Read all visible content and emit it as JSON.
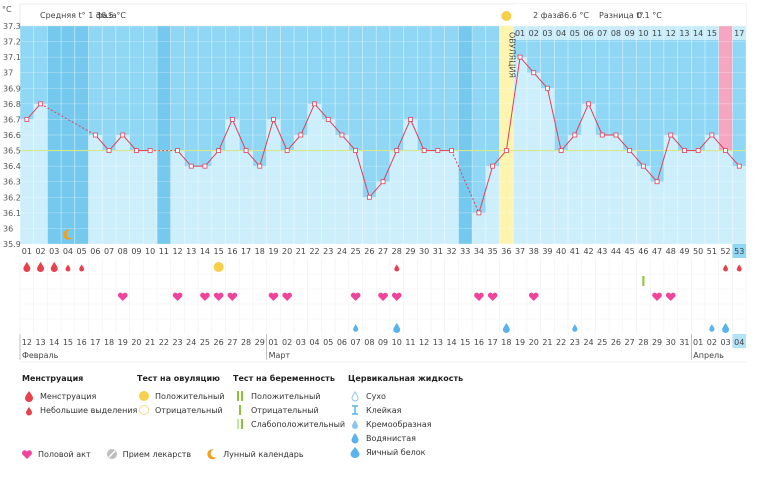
{
  "chart_data": {
    "type": "line",
    "y_unit": "°C",
    "y_ticks": [
      "37.3",
      "37.2",
      "37.1",
      "37",
      "36.9",
      "36.8",
      "36.7",
      "36.6",
      "36.5",
      "36.4",
      "36.3",
      "36.2",
      "36.1",
      "36",
      "35.9"
    ],
    "ylim": [
      35.9,
      37.3
    ],
    "coverline": 36.5,
    "cycle_days": [
      "01",
      "02",
      "03",
      "04",
      "05",
      "06",
      "07",
      "08",
      "09",
      "10",
      "11",
      "12",
      "13",
      "14",
      "15",
      "16",
      "17",
      "18",
      "19",
      "20",
      "21",
      "22",
      "23",
      "24",
      "25",
      "26",
      "27",
      "28",
      "29",
      "30",
      "31",
      "32",
      "33",
      "34",
      "35",
      "36",
      "37",
      "38",
      "39",
      "40",
      "41",
      "42",
      "43",
      "44",
      "45",
      "46",
      "47",
      "48",
      "49",
      "50",
      "51",
      "52",
      "53"
    ],
    "temps": [
      36.7,
      36.8,
      null,
      null,
      null,
      36.6,
      36.5,
      36.6,
      36.5,
      36.5,
      null,
      36.5,
      36.4,
      36.4,
      36.5,
      36.7,
      36.5,
      36.4,
      36.7,
      36.5,
      36.6,
      36.8,
      36.7,
      36.6,
      36.5,
      36.2,
      36.3,
      36.5,
      36.7,
      36.5,
      36.5,
      36.5,
      null,
      36.1,
      36.4,
      36.5,
      37.1,
      37.0,
      36.9,
      36.5,
      36.6,
      36.8,
      36.6,
      36.6,
      36.5,
      36.4,
      36.3,
      36.6,
      36.5,
      36.5,
      36.6,
      36.5,
      36.4
    ],
    "phase1": {
      "label": "Средняя t° 1 фаза",
      "value": "36.5 °C"
    },
    "phase2": {
      "label": "2 фаза",
      "value": "36.6 °C",
      "diff_label": "Разница t°",
      "diff_value": "0.1 °C"
    },
    "ovulation_label": "ОВУЛЯЦИЯ",
    "phase2_day_labels": [
      "01",
      "02",
      "03",
      "04",
      "05",
      "06",
      "07",
      "08",
      "09",
      "10",
      "11",
      "12",
      "13",
      "14",
      "15",
      "16",
      "17"
    ],
    "calendar_days": [
      "12",
      "13",
      "14",
      "15",
      "16",
      "17",
      "18",
      "19",
      "20",
      "21",
      "22",
      "23",
      "24",
      "25",
      "26",
      "27",
      "28",
      "29",
      "01",
      "02",
      "03",
      "04",
      "05",
      "06",
      "07",
      "08",
      "09",
      "10",
      "11",
      "12",
      "13",
      "14",
      "15",
      "16",
      "17",
      "18",
      "19",
      "20",
      "21",
      "22",
      "23",
      "24",
      "25",
      "26",
      "27",
      "28",
      "29",
      "30",
      "31",
      "01",
      "02",
      "03",
      "04"
    ],
    "calendar_red": [
      4,
      5,
      10,
      11,
      17,
      18,
      24,
      25,
      31,
      32,
      38,
      39,
      45,
      46,
      52
    ],
    "months": [
      {
        "name": "Февраль",
        "day": 1
      },
      {
        "name": "Март",
        "day": 19
      },
      {
        "name": "Апрель",
        "day": 50
      }
    ],
    "menstruation_days": [
      1,
      2,
      3
    ],
    "spotting_days": [
      4,
      5,
      28,
      52,
      53
    ],
    "ovulation_test_positive_days": [
      15
    ],
    "pregnancy_test_weak_days": [
      46
    ],
    "intercourse_days": [
      8,
      12,
      14,
      15,
      16,
      19,
      20,
      25,
      27,
      28,
      34,
      35,
      38,
      47,
      48
    ],
    "fluid_watery_days": [
      25,
      41,
      51,
      52
    ],
    "fluid_eggwhite_days": [
      28,
      36,
      52
    ],
    "moon_days": [
      4
    ],
    "gap_days": [
      3,
      4,
      5,
      11,
      33
    ],
    "current_day": 53
  },
  "legend": {
    "menstruation": {
      "title": "Менструация",
      "items": [
        "Менструация",
        "Небольшие выделения"
      ]
    },
    "ovulation_test": {
      "title": "Тест на овуляцию",
      "items": [
        "Положительный",
        "Отрицательный"
      ]
    },
    "pregnancy_test": {
      "title": "Тест на беременность",
      "items": [
        "Положительный",
        "Отрицательный",
        "Слабоположительный"
      ]
    },
    "cervical": {
      "title": "Цервикальная жидкость",
      "items": [
        "Сухо",
        "Клейкая",
        "Кремообразная",
        "Водянистая",
        "Яичный белок"
      ]
    },
    "bottom": [
      "Половой акт",
      "Прием лекарств",
      "Лунный календарь"
    ]
  },
  "colors": {
    "band": "#8fd7f4",
    "area": "#cdeefb",
    "line": "#e0405a",
    "coverline": "#d6e88a",
    "ovulation": "#fdf4b0",
    "menstruation": "#e8404c",
    "heart": "#f0449c",
    "fluid": "#5ab4ec"
  }
}
